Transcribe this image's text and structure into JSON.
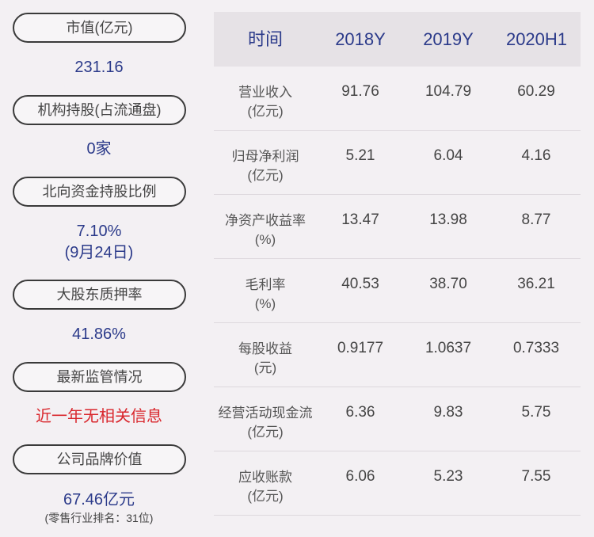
{
  "left": [
    {
      "label": "市值(亿元)",
      "value": [
        "231.16"
      ]
    },
    {
      "label": "机构持股(占流通盘)",
      "value": [
        "0家"
      ]
    },
    {
      "label": "北向资金持股比例",
      "value": [
        "7.10%",
        "(9月24日)"
      ]
    },
    {
      "label": "大股东质押率",
      "value": [
        "41.86%"
      ]
    },
    {
      "label": "最新监管情况",
      "value": [
        "近一年无相关信息"
      ]
    },
    {
      "label": "公司品牌价值",
      "value": [
        "67.46亿元"
      ],
      "note": "(零售行业排名：31位)"
    }
  ],
  "table": {
    "header": [
      "时间",
      "2018Y",
      "2019Y",
      "2020H1"
    ],
    "rows": [
      {
        "label": [
          "营业收入",
          "(亿元)"
        ],
        "values": [
          "91.76",
          "104.79",
          "60.29"
        ]
      },
      {
        "label": [
          "归母净利润",
          "(亿元)"
        ],
        "values": [
          "5.21",
          "6.04",
          "4.16"
        ]
      },
      {
        "label": [
          "净资产收益率",
          "(%)"
        ],
        "values": [
          "13.47",
          "13.98",
          "8.77"
        ]
      },
      {
        "label": [
          "毛利率",
          "(%)"
        ],
        "values": [
          "40.53",
          "38.70",
          "36.21"
        ]
      },
      {
        "label": [
          "每股收益",
          "(元)"
        ],
        "values": [
          "0.9177",
          "1.0637",
          "0.7333"
        ]
      },
      {
        "label": [
          "经营活动现金流",
          "(亿元)"
        ],
        "values": [
          "6.36",
          "9.83",
          "5.75"
        ]
      },
      {
        "label": [
          "应收账款",
          "(亿元)"
        ],
        "values": [
          "6.06",
          "5.23",
          "7.55"
        ]
      }
    ]
  }
}
